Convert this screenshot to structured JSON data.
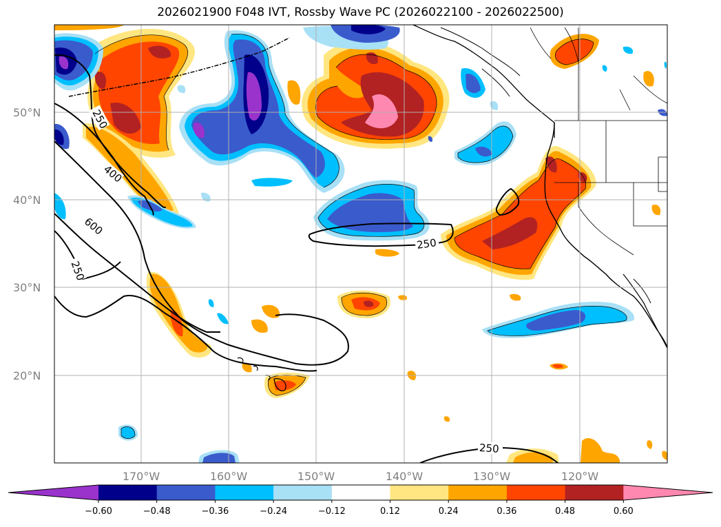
{
  "title": "2026021900 F048 IVT, Rossby Wave PC (2026022100 - 2026022500)",
  "map": {
    "lat_ticks": [
      "50°N",
      "40°N",
      "30°N",
      "20°N"
    ],
    "lon_ticks": [
      "170°W",
      "160°W",
      "150°W",
      "140°W",
      "130°W",
      "120°W"
    ],
    "ivt_contour_labels": [
      "250",
      "400",
      "600",
      "250",
      "250",
      "250"
    ]
  },
  "colorbar": {
    "tick_labels": [
      "−0.60",
      "−0.48",
      "−0.36",
      "−0.24",
      "−0.12",
      "0.12",
      "0.24",
      "0.36",
      "0.48",
      "0.60"
    ],
    "colors": [
      "#9933cc",
      "#00008b",
      "#3a5bcc",
      "#00bfff",
      "#a8e0f5",
      "#ffffff",
      "#ffe680",
      "#ffa500",
      "#ff4500",
      "#b22222",
      "#ff88b0"
    ]
  }
}
